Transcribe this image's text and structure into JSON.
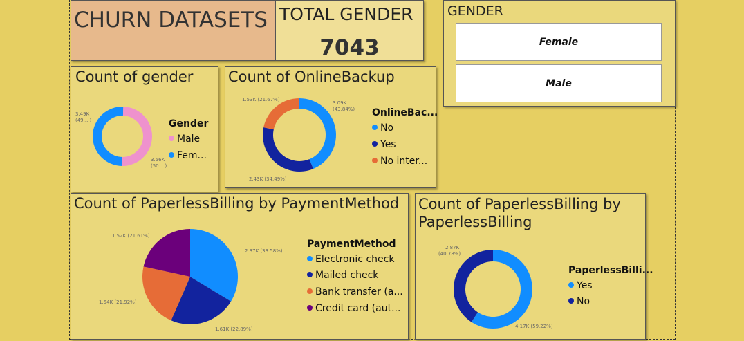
{
  "header": {
    "title": "CHURN DATASETS"
  },
  "kpi": {
    "label": "TOTAL GENDER",
    "value": "7043"
  },
  "slicer": {
    "title": "GENDER",
    "options": [
      "Female",
      "Male"
    ]
  },
  "colors": {
    "pink": "#ee92cd",
    "blue": "#118dff",
    "navy": "#12239e",
    "orange": "#e66c37",
    "purple": "#6b007b"
  },
  "charts": {
    "gender": {
      "title": "Count of gender",
      "legend_title": "Gender",
      "legend": [
        "Male",
        "Fem..."
      ],
      "labels": [
        "3.49K (49....)",
        "3.56K (50....)"
      ]
    },
    "online_backup": {
      "title": "Count of OnlineBackup",
      "legend_title": "OnlineBac...",
      "legend": [
        "No",
        "Yes",
        "No inter..."
      ],
      "labels": [
        "3.09K (43.84%)",
        "2.43K (34.49%)",
        "1.53K (21.67%)"
      ]
    },
    "payment": {
      "title": "Count of PaperlessBilling by PaymentMethod",
      "legend_title": "PaymentMethod",
      "legend": [
        "Electronic check",
        "Mailed check",
        "Bank transfer (a...",
        "Credit card (aut..."
      ],
      "labels": [
        "2.37K (33.58%)",
        "1.61K (22.89%)",
        "1.54K (21.92%)",
        "1.52K (21.61%)"
      ]
    },
    "paperless": {
      "title": "Count of PaperlessBilling by PaperlessBilling",
      "legend_title": "PaperlessBilli...",
      "legend": [
        "Yes",
        "No"
      ],
      "labels": [
        "4.17K (59.22%)",
        "2.87K (40.78%)"
      ]
    }
  },
  "chart_data": [
    {
      "type": "pie",
      "title": "Count of gender",
      "legend_title": "Gender",
      "categories": [
        "Male",
        "Female"
      ],
      "values": [
        3.49,
        3.56
      ],
      "unit": "K",
      "donut": true
    },
    {
      "type": "pie",
      "title": "Count of OnlineBackup",
      "legend_title": "OnlineBackup",
      "categories": [
        "No",
        "Yes",
        "No internet service"
      ],
      "values": [
        3.09,
        2.43,
        1.53
      ],
      "percent": [
        43.84,
        34.49,
        21.67
      ],
      "unit": "K",
      "donut": true
    },
    {
      "type": "pie",
      "title": "Count of PaperlessBilling by PaymentMethod",
      "legend_title": "PaymentMethod",
      "categories": [
        "Electronic check",
        "Mailed check",
        "Bank transfer (automatic)",
        "Credit card (automatic)"
      ],
      "values": [
        2.37,
        1.61,
        1.54,
        1.52
      ],
      "percent": [
        33.58,
        22.89,
        21.92,
        21.61
      ],
      "unit": "K",
      "donut": false
    },
    {
      "type": "pie",
      "title": "Count of PaperlessBilling by PaperlessBilling",
      "legend_title": "PaperlessBilling",
      "categories": [
        "Yes",
        "No"
      ],
      "values": [
        4.17,
        2.87
      ],
      "percent": [
        59.22,
        40.78
      ],
      "unit": "K",
      "donut": true
    }
  ]
}
